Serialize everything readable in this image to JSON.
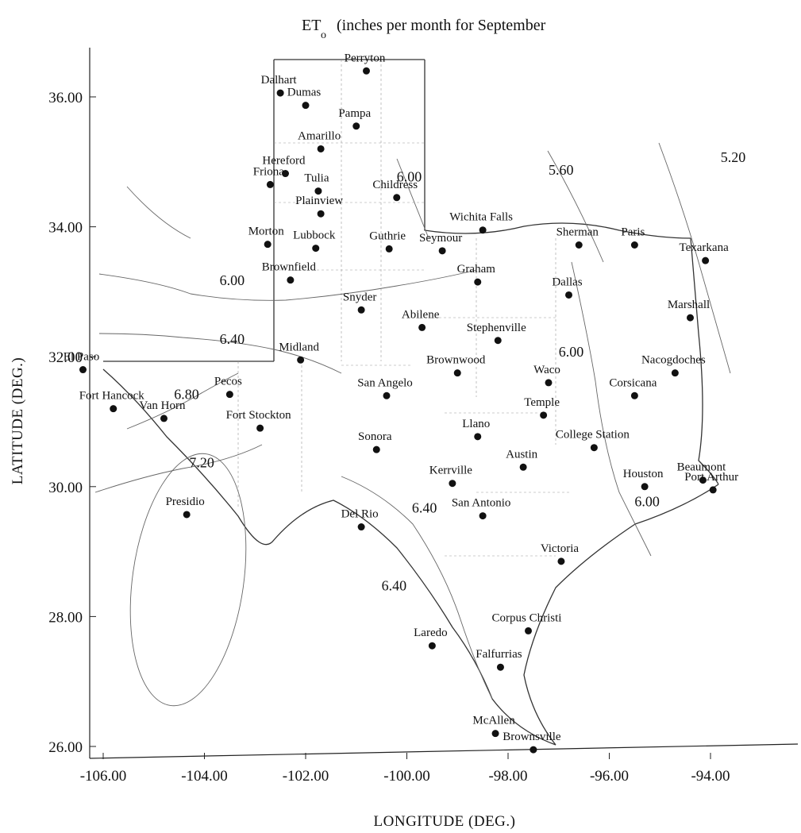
{
  "title": "ET",
  "title_subscript": "o",
  "title_rest": "(inches per month for September",
  "xlabel": "LONGITUDE (DEG.)",
  "ylabel": "LATITUDE (DEG.)",
  "colors": {
    "ink": "#111111",
    "boundary": "#333333",
    "contour": "#666666"
  },
  "chart_data": {
    "type": "scatter",
    "subtype": "contour-map",
    "xlim": [
      -106.8,
      -91.6
    ],
    "ylim": [
      25.8,
      36.6
    ],
    "x_ticks": [
      "-106.00",
      "-104.00",
      "-102.00",
      "-100.00",
      "-98.00",
      "-96.00",
      "-94.00"
    ],
    "x_tick_values": [
      -106,
      -104,
      -102,
      -100,
      -98,
      -96,
      -94
    ],
    "y_ticks": [
      "26.00",
      "28.00",
      "30.00",
      "32.00",
      "34.00",
      "36.00"
    ],
    "y_tick_values": [
      26,
      28,
      30,
      32,
      34,
      36
    ],
    "contour_labels": [
      {
        "text": "6.00",
        "lon": -103.7,
        "lat": 33.1
      },
      {
        "text": "6.40",
        "lon": -103.7,
        "lat": 32.2
      },
      {
        "text": "6.80",
        "lon": -104.6,
        "lat": 31.35
      },
      {
        "text": "7.20",
        "lon": -104.3,
        "lat": 30.3
      },
      {
        "text": "6.40",
        "lon": -99.9,
        "lat": 29.6
      },
      {
        "text": "6.40",
        "lon": -100.5,
        "lat": 28.4
      },
      {
        "text": "6.00",
        "lon": -97.0,
        "lat": 32.0
      },
      {
        "text": "6.00",
        "lon": -95.5,
        "lat": 29.7
      },
      {
        "text": "5.20",
        "lon": -93.8,
        "lat": 35.0
      },
      {
        "text": "5.60",
        "lon": -97.2,
        "lat": 34.8
      },
      {
        "text": "6.00",
        "lon": -100.2,
        "lat": 34.7
      }
    ],
    "cities": [
      {
        "name": "El Paso",
        "lon": -106.4,
        "lat": 31.8
      },
      {
        "name": "Fort Hancock",
        "lon": -105.8,
        "lat": 31.2
      },
      {
        "name": "Van Horn",
        "lon": -104.8,
        "lat": 31.05
      },
      {
        "name": "Pecos",
        "lon": -103.5,
        "lat": 31.42
      },
      {
        "name": "Fort Stockton",
        "lon": -102.9,
        "lat": 30.9
      },
      {
        "name": "Presidio",
        "lon": -104.35,
        "lat": 29.57
      },
      {
        "name": "Dalhart",
        "lon": -102.5,
        "lat": 36.06
      },
      {
        "name": "Dumas",
        "lon": -102.0,
        "lat": 35.87
      },
      {
        "name": "Perryton",
        "lon": -100.8,
        "lat": 36.4
      },
      {
        "name": "Pampa",
        "lon": -101.0,
        "lat": 35.55
      },
      {
        "name": "Amarillo",
        "lon": -101.7,
        "lat": 35.2
      },
      {
        "name": "Hereford",
        "lon": -102.4,
        "lat": 34.82
      },
      {
        "name": "Friona",
        "lon": -102.7,
        "lat": 34.65
      },
      {
        "name": "Tulia",
        "lon": -101.75,
        "lat": 34.55
      },
      {
        "name": "Plainview",
        "lon": -101.7,
        "lat": 34.2
      },
      {
        "name": "Childress",
        "lon": -100.2,
        "lat": 34.45
      },
      {
        "name": "Morton",
        "lon": -102.75,
        "lat": 33.73
      },
      {
        "name": "Lubbock",
        "lon": -101.8,
        "lat": 33.67
      },
      {
        "name": "Guthrie",
        "lon": -100.35,
        "lat": 33.66
      },
      {
        "name": "Seymour",
        "lon": -99.3,
        "lat": 33.63
      },
      {
        "name": "Wichita Falls",
        "lon": -98.5,
        "lat": 33.95
      },
      {
        "name": "Sherman",
        "lon": -96.6,
        "lat": 33.72
      },
      {
        "name": "Paris",
        "lon": -95.5,
        "lat": 33.72
      },
      {
        "name": "Texarkana",
        "lon": -94.1,
        "lat": 33.48
      },
      {
        "name": "Brownfield",
        "lon": -102.3,
        "lat": 33.18
      },
      {
        "name": "Graham",
        "lon": -98.6,
        "lat": 33.15
      },
      {
        "name": "Dallas",
        "lon": -96.8,
        "lat": 32.95
      },
      {
        "name": "Snyder",
        "lon": -100.9,
        "lat": 32.72
      },
      {
        "name": "Abilene",
        "lon": -99.7,
        "lat": 32.45
      },
      {
        "name": "Stephenville",
        "lon": -98.2,
        "lat": 32.25
      },
      {
        "name": "Marshall",
        "lon": -94.4,
        "lat": 32.6
      },
      {
        "name": "Midland",
        "lon": -102.1,
        "lat": 31.95
      },
      {
        "name": "Brownwood",
        "lon": -99.0,
        "lat": 31.75
      },
      {
        "name": "Waco",
        "lon": -97.2,
        "lat": 31.6
      },
      {
        "name": "Nacogdoches",
        "lon": -94.7,
        "lat": 31.75
      },
      {
        "name": "San Angelo",
        "lon": -100.4,
        "lat": 31.4
      },
      {
        "name": "Corsicana",
        "lon": -95.5,
        "lat": 31.4
      },
      {
        "name": "Temple",
        "lon": -97.3,
        "lat": 31.1
      },
      {
        "name": "Llano",
        "lon": -98.6,
        "lat": 30.77
      },
      {
        "name": "College Station",
        "lon": -96.3,
        "lat": 30.6
      },
      {
        "name": "Sonora",
        "lon": -100.6,
        "lat": 30.57
      },
      {
        "name": "Austin",
        "lon": -97.7,
        "lat": 30.3
      },
      {
        "name": "Kerrville",
        "lon": -99.1,
        "lat": 30.05
      },
      {
        "name": "Houston",
        "lon": -95.3,
        "lat": 30.0
      },
      {
        "name": "Beaumont",
        "lon": -94.15,
        "lat": 30.1
      },
      {
        "name": "Port Arthur",
        "lon": -93.95,
        "lat": 29.95
      },
      {
        "name": "San Antonio",
        "lon": -98.5,
        "lat": 29.55
      },
      {
        "name": "Del Rio",
        "lon": -100.9,
        "lat": 29.38
      },
      {
        "name": "Victoria",
        "lon": -96.95,
        "lat": 28.85
      },
      {
        "name": "Corpus Christi",
        "lon": -97.6,
        "lat": 27.78
      },
      {
        "name": "Laredo",
        "lon": -99.5,
        "lat": 27.55
      },
      {
        "name": "Falfurrias",
        "lon": -98.15,
        "lat": 27.22
      },
      {
        "name": "McAllen",
        "lon": -98.25,
        "lat": 26.2
      },
      {
        "name": "Brownsville",
        "lon": -97.5,
        "lat": 25.95
      }
    ]
  }
}
